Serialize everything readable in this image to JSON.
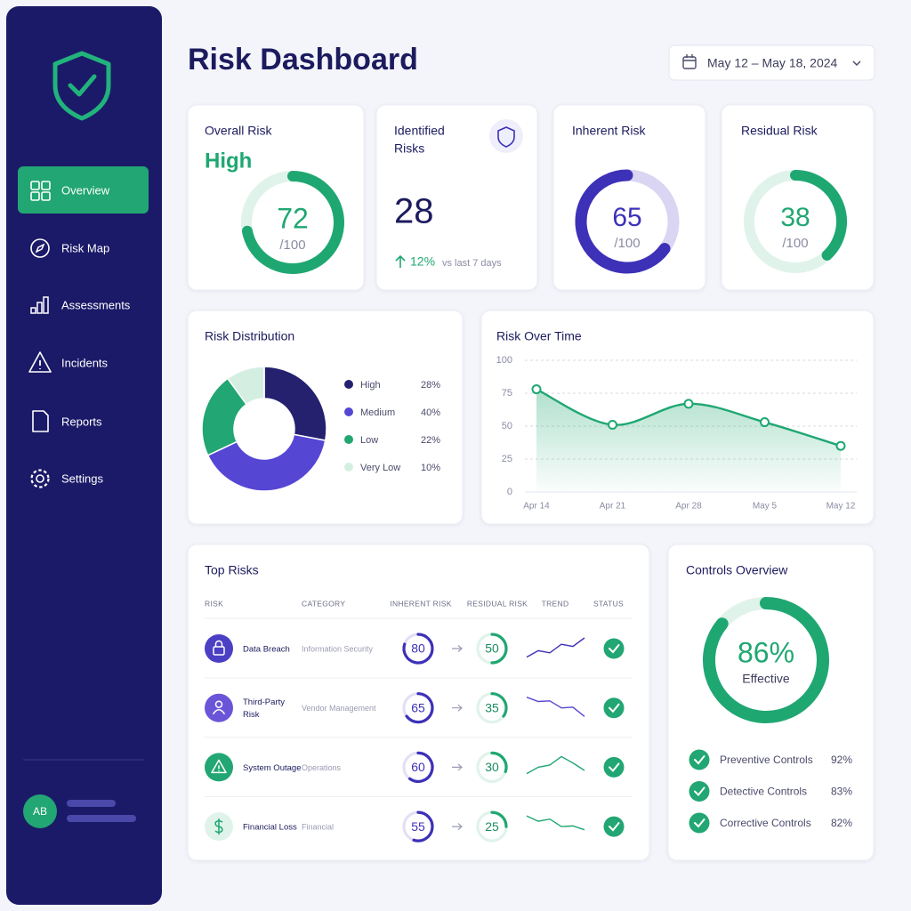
{
  "sidebar": {
    "nav": [
      {
        "label": "Overview",
        "active": true
      },
      {
        "label": "Risk Map"
      },
      {
        "label": "Assessments"
      },
      {
        "label": "Incidents"
      },
      {
        "label": "Reports"
      },
      {
        "label": "Settings"
      }
    ],
    "user_initials": "AB"
  },
  "header": {
    "title": "Risk Dashboard",
    "date_range": "May 12 – May 18, 2024"
  },
  "kpis": {
    "overall_risk": {
      "title": "Overall Risk",
      "level": "High",
      "value": 72,
      "max": {
        "value": 100,
        "label": "/100"
      }
    },
    "identified_risks": {
      "title": [
        "Identified",
        "Risks"
      ],
      "value": 28,
      "change": {
        "value": 12,
        "label": "12%"
      },
      "change_note": "vs last 7 days"
    },
    "inherent_risk": {
      "title": "Inherent Risk",
      "value": 65,
      "max": {
        "value": 100,
        "label": "/100"
      }
    },
    "residual_risk": {
      "title": "Residual Risk",
      "value": 38,
      "max": {
        "value": 100,
        "label": "/100"
      }
    }
  },
  "chart_data": [
    {
      "type": "pie",
      "title": "Risk Distribution",
      "donut": true,
      "categories": [
        "High",
        "Medium",
        "Low",
        "Very Low"
      ],
      "values": [
        28,
        40,
        22,
        10
      ],
      "value_labels": [
        "28%",
        "40%",
        "22%",
        "10%"
      ],
      "colors": [
        "#25216f",
        "#5646d4",
        "#22a673",
        "#d4efe2"
      ]
    },
    {
      "type": "line",
      "title": "Risk Over Time",
      "x": [
        "Apr 14",
        "Apr 21",
        "Apr 28",
        "May 5",
        "May 12"
      ],
      "values": [
        78,
        51,
        67,
        53,
        35
      ],
      "color": "#1fa772",
      "ylim": [
        0,
        100
      ],
      "yticks": [
        0,
        25,
        50,
        75,
        100
      ],
      "grid": true,
      "area": true
    }
  ],
  "top_risks": {
    "title": "Top Risks",
    "columns": [
      "RISK",
      "CATEGORY",
      "INHERENT RISK",
      "RESIDUAL RISK",
      "TREND",
      "STATUS"
    ],
    "value_range": [
      0,
      100
    ],
    "trend_range": [
      0,
      10
    ],
    "rows": [
      {
        "name": [
          "Data Breach"
        ],
        "category": "Information Security",
        "inherent": 80,
        "residual": 50,
        "trend": [
          1,
          4,
          3,
          7,
          6,
          10
        ]
      },
      {
        "name": [
          "Third-Party",
          "Risk"
        ],
        "category": "Vendor Management",
        "inherent": 65,
        "residual": 35,
        "trend": [
          10,
          8,
          8.3,
          5,
          5.3,
          1
        ]
      },
      {
        "name": [
          "System Outage"
        ],
        "category": "Operations",
        "inherent": 60,
        "residual": 30,
        "trend": [
          2,
          5,
          6,
          10,
          7,
          3.5
        ]
      },
      {
        "name": [
          "Financial Loss"
        ],
        "category": "Financial",
        "inherent": 55,
        "residual": 25,
        "trend": [
          10,
          7.5,
          8.5,
          5,
          5.3,
          3.5
        ]
      }
    ]
  },
  "controls": {
    "title": "Controls Overview",
    "value": 86,
    "value_label": "86%",
    "caption": "Effective",
    "value_range": [
      0,
      100
    ],
    "items": [
      {
        "name": "Preventive Controls",
        "value": 92,
        "value_label": "92%"
      },
      {
        "name": "Detective Controls",
        "value": 83,
        "value_label": "83%"
      },
      {
        "name": "Corrective Controls",
        "value": 82,
        "value_label": "82%"
      }
    ]
  }
}
